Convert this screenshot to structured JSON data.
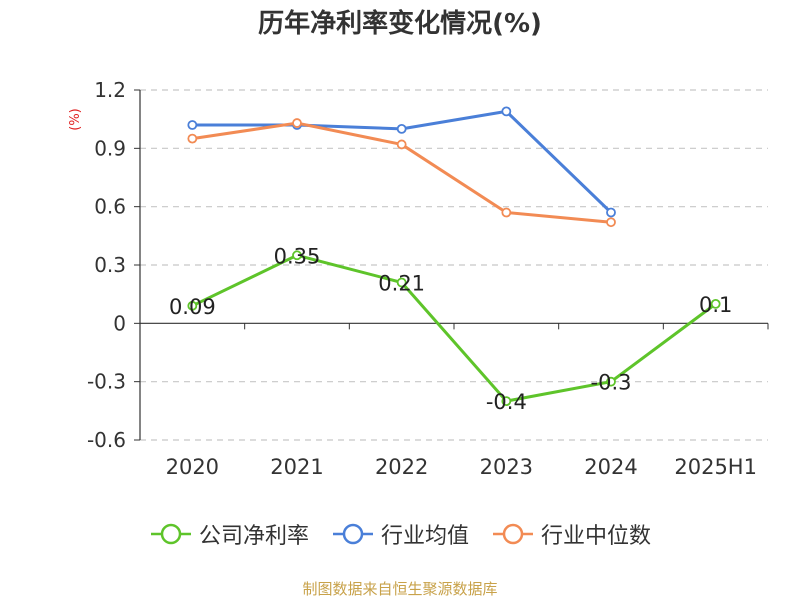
{
  "chart_data": {
    "type": "line",
    "title": "历年净利率变化情况(%)",
    "unit_label": "(%)",
    "categories": [
      "2020",
      "2021",
      "2022",
      "2023",
      "2024",
      "2025H1"
    ],
    "ylim": [
      -0.6,
      1.2
    ],
    "yticks": [
      -0.6,
      -0.3,
      0,
      0.3,
      0.6,
      0.9,
      1.2
    ],
    "ytick_labels": [
      "-0.6",
      "-0.3",
      "0",
      "0.3",
      "0.6",
      "0.9",
      "1.2"
    ],
    "grid": true,
    "legend_position": "bottom",
    "series": [
      {
        "name": "公司净利率",
        "color": "#5ec42a",
        "values": [
          0.09,
          0.35,
          0.21,
          -0.4,
          -0.3,
          0.1
        ],
        "labels": [
          "0.09",
          "0.35",
          "0.21",
          "-0.4",
          "-0.3",
          "0.1"
        ]
      },
      {
        "name": "行业均值",
        "color": "#4a7fd8",
        "values": [
          1.02,
          1.02,
          1.0,
          1.09,
          0.57,
          null
        ]
      },
      {
        "name": "行业中位数",
        "color": "#f28b54",
        "values": [
          0.95,
          1.03,
          0.92,
          0.57,
          0.52,
          null
        ]
      }
    ]
  },
  "footer": {
    "source": "制图数据来自恒生聚源数据库"
  }
}
